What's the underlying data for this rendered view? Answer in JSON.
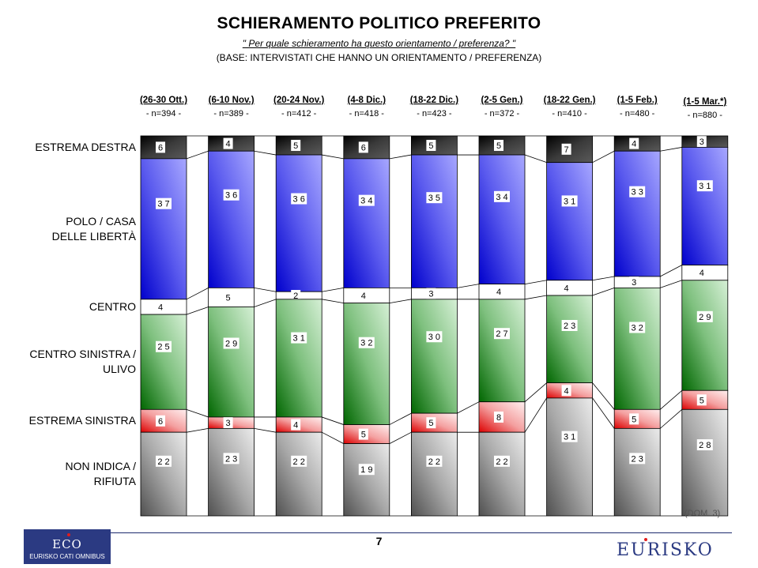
{
  "chart_data": {
    "type": "bar",
    "stacked": true,
    "title": "SCHIERAMENTO POLITICO PREFERITO",
    "subtitle": "\" Per quale schieramento ha questo orientamento / preferenza? \"",
    "base_note": "(BASE: INTERVISTATI CHE HANNO UN ORIENTAMENTO / PREFERENZA)",
    "categories": [
      "(26-30 Ott.)",
      "(6-10 Nov.)",
      "(20-24 Nov.)",
      "(4-8 Dic.)",
      "(18-22 Dic.)",
      "(2-5 Gen.)",
      "(18-22 Gen.)",
      "(1-5 Feb.)",
      "(1-5 Mar.*)"
    ],
    "sample_sizes": [
      "- n=394 -",
      "- n=389 -",
      "- n=412 -",
      "- n=418 -",
      "- n=423 -",
      "- n=372 -",
      "- n=410 -",
      "- n=480 -",
      "- n=880 -"
    ],
    "series": [
      {
        "name": "ESTREMA DESTRA",
        "values": [
          6,
          4,
          5,
          6,
          5,
          5,
          7,
          4,
          3
        ],
        "color": "#333333"
      },
      {
        "name": "POLO / CASA DELLE LIBERTÀ",
        "values": [
          37,
          36,
          36,
          34,
          35,
          34,
          31,
          33,
          31
        ],
        "color": "#3a3ad8"
      },
      {
        "name": "CENTRO",
        "values": [
          4,
          5,
          2,
          4,
          3,
          4,
          4,
          3,
          4
        ],
        "color": "#ffffff"
      },
      {
        "name": "CENTRO SINISTRA / ULIVO",
        "values": [
          25,
          29,
          31,
          32,
          30,
          27,
          23,
          32,
          29
        ],
        "color": "#3a9a3a"
      },
      {
        "name": "ESTREMA SINISTRA",
        "values": [
          6,
          3,
          4,
          5,
          5,
          8,
          4,
          5,
          5
        ],
        "color": "#e83030"
      },
      {
        "name": "NON INDICA / RIFIUTA",
        "values": [
          22,
          23,
          22,
          19,
          22,
          22,
          31,
          23,
          28
        ],
        "color": "#9a9a9a"
      }
    ],
    "legend": "left",
    "grid": false
  },
  "row_labels": [
    {
      "lines": [
        "ESTREMA DESTRA"
      ]
    },
    {
      "lines": [
        "POLO / CASA",
        "DELLE LIBERTÀ"
      ]
    },
    {
      "lines": [
        "CENTRO"
      ]
    },
    {
      "lines": [
        "CENTRO SINISTRA /",
        "ULIVO"
      ]
    },
    {
      "lines": [
        "ESTREMA SINISTRA"
      ]
    },
    {
      "lines": [
        "NON INDICA /",
        "RIFIUTA"
      ]
    }
  ],
  "note": "(DOM. 3)",
  "page_number": "7",
  "logos": {
    "eco": "ECO",
    "eco_sub": "EURISKO CATI OMNIBUS",
    "eurisko": "EURISKO"
  }
}
